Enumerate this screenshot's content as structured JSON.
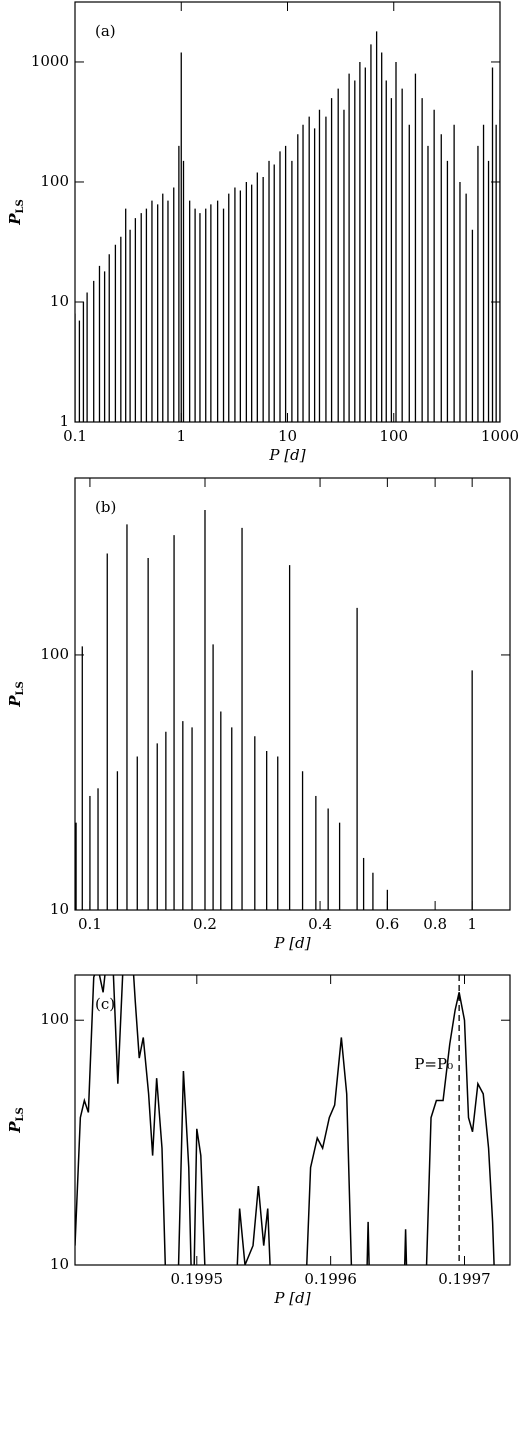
{
  "chart_data": [
    {
      "type": "spikes",
      "panel_label": "(a)",
      "x_label": "P [d]",
      "y_label": "P",
      "y_label_sub": "LS",
      "log_x": true,
      "log_y": true,
      "color": "#000000",
      "xlim": [
        0.1,
        1000
      ],
      "ylim": [
        1,
        3160
      ],
      "xticks": [
        0.1,
        1,
        10,
        100,
        1000
      ],
      "yticks": [
        1,
        10,
        100,
        1000
      ],
      "x": [
        0.1,
        0.11,
        0.12,
        0.13,
        0.15,
        0.17,
        0.19,
        0.21,
        0.24,
        0.27,
        0.3,
        0.33,
        0.37,
        0.42,
        0.47,
        0.53,
        0.6,
        0.67,
        0.75,
        0.85,
        0.95,
        1.0,
        1.05,
        1.2,
        1.35,
        1.5,
        1.7,
        1.9,
        2.2,
        2.5,
        2.8,
        3.2,
        3.6,
        4.1,
        4.6,
        5.2,
        5.9,
        6.7,
        7.5,
        8.5,
        9.6,
        11,
        12.5,
        14,
        16,
        18,
        20,
        23,
        26,
        30,
        34,
        38,
        43,
        48,
        54,
        61,
        69,
        77,
        85,
        95,
        105,
        120,
        140,
        160,
        185,
        210,
        240,
        280,
        320,
        370,
        420,
        480,
        550,
        620,
        700,
        780,
        850,
        920,
        1000
      ],
      "values": [
        8,
        7,
        10,
        12,
        15,
        20,
        18,
        25,
        30,
        35,
        60,
        40,
        50,
        55,
        60,
        70,
        65,
        80,
        70,
        90,
        200,
        1200,
        150,
        70,
        60,
        55,
        60,
        65,
        70,
        60,
        80,
        90,
        85,
        100,
        95,
        120,
        110,
        150,
        140,
        180,
        200,
        150,
        250,
        300,
        350,
        280,
        400,
        350,
        500,
        600,
        400,
        800,
        700,
        1000,
        900,
        1400,
        1800,
        1200,
        700,
        500,
        1000,
        600,
        300,
        800,
        500,
        200,
        400,
        250,
        150,
        300,
        100,
        80,
        40,
        200,
        300,
        150,
        900,
        300,
        400
      ]
    },
    {
      "type": "spikes",
      "panel_label": "(b)",
      "x_label": "P [d]",
      "y_label": "P",
      "y_label_sub": "LS",
      "log_x": true,
      "log_y": true,
      "color": "#000000",
      "xlim": [
        0.0914,
        1.256
      ],
      "ylim": [
        10,
        494
      ],
      "xticks": [
        0.1,
        0.2,
        0.4,
        0.6,
        0.8,
        1
      ],
      "yticks": [
        10,
        100
      ],
      "x": [
        0.092,
        0.0955,
        0.1,
        0.105,
        0.111,
        0.118,
        0.125,
        0.133,
        0.142,
        0.15,
        0.158,
        0.166,
        0.175,
        0.185,
        0.2,
        0.21,
        0.22,
        0.235,
        0.25,
        0.27,
        0.29,
        0.31,
        0.333,
        0.36,
        0.39,
        0.42,
        0.45,
        0.5,
        0.52,
        0.55,
        0.6,
        1.0
      ],
      "values": [
        22,
        108,
        28,
        30,
        250,
        35,
        325,
        40,
        240,
        45,
        50,
        295,
        55,
        52,
        370,
        110,
        60,
        52,
        315,
        48,
        42,
        40,
        225,
        35,
        28,
        25,
        22,
        153,
        16,
        14,
        12,
        87
      ]
    },
    {
      "type": "line",
      "panel_label": "(c)",
      "x_label": "P [d]",
      "y_label": "P",
      "y_label_sub": "LS",
      "log_x": false,
      "log_y": true,
      "color": "#000000",
      "xlim": [
        0.199409,
        0.199734
      ],
      "ylim": [
        10,
        153
      ],
      "xticks": [
        0.1995,
        0.1996,
        0.1997
      ],
      "yticks": [
        10,
        100
      ],
      "vline": 0.199696,
      "annotation": "P=P₀",
      "x": [
        0.199409,
        0.199413,
        0.199416,
        0.199419,
        0.199423,
        0.199426,
        0.19943,
        0.199434,
        0.199437,
        0.199441,
        0.199448,
        0.199454,
        0.199457,
        0.19946,
        0.199464,
        0.199467,
        0.19947,
        0.199474,
        0.199478,
        0.199485,
        0.19949,
        0.199494,
        0.199497,
        0.1995,
        0.199503,
        0.199508,
        0.199528,
        0.199532,
        0.199536,
        0.199542,
        0.199546,
        0.19955,
        0.199553,
        0.199557,
        0.19958,
        0.199585,
        0.19959,
        0.199594,
        0.199599,
        0.199603,
        0.199608,
        0.199612,
        0.199617,
        0.199626,
        0.199628,
        0.19963,
        0.199654,
        0.199656,
        0.199658,
        0.19967,
        0.199675,
        0.199679,
        0.199684,
        0.199689,
        0.199693,
        0.199696,
        0.1997,
        0.199703,
        0.199706,
        0.19971,
        0.199714,
        0.199718,
        0.199721,
        0.199724
      ],
      "values": [
        12,
        40,
        47,
        42,
        150,
        165,
        130,
        210,
        190,
        55,
        400,
        120,
        70,
        85,
        50,
        28,
        58,
        30,
        5,
        5,
        62,
        25,
        5,
        36,
        28,
        5,
        5,
        17,
        10,
        12,
        21,
        12,
        17,
        5,
        5,
        25,
        33,
        30,
        40,
        45,
        85,
        50,
        5,
        5,
        15,
        5,
        5,
        14,
        5,
        5,
        40,
        47,
        47,
        80,
        110,
        130,
        100,
        40,
        35,
        55,
        50,
        30,
        15,
        5
      ]
    }
  ]
}
